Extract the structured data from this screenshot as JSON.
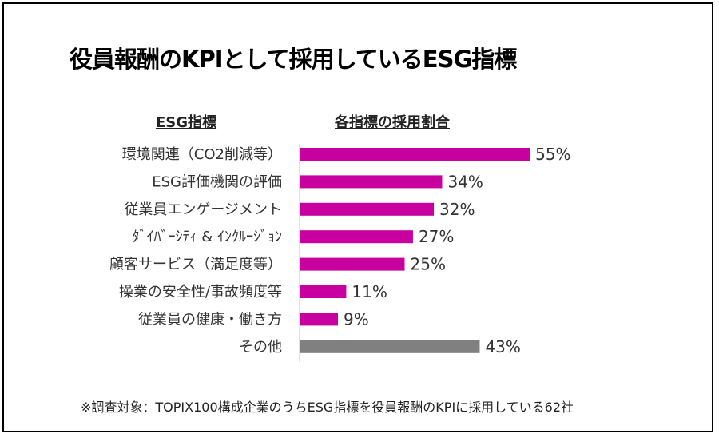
{
  "title": "役員報酬のKPIとして採用しているESG指標",
  "headers": {
    "category": "ESG指標",
    "value": "各指標の採用割合"
  },
  "note": "※調査対象：TOPIX100構成企業のうちESG指標を役員報酬のKPIに採用している62社",
  "colors": {
    "primary": "#C800A0",
    "other": "#808080"
  },
  "chart_data": {
    "type": "bar",
    "orientation": "horizontal",
    "categories": [
      "環境関連（CO2削減等）",
      "ESG評価機関の評価",
      "従業員エンゲージメント",
      "ﾀﾞｲﾊﾞｰｼﾃｨ & ｲﾝｸﾙｰｼﾞｮﾝ",
      "顧客サービス（満足度等）",
      "操業の安全性/事故頻度等",
      "従業員の健康・働き方",
      "その他"
    ],
    "values": [
      55,
      34,
      32,
      27,
      25,
      11,
      9,
      43
    ],
    "labels": [
      "55%",
      "34%",
      "32%",
      "27%",
      "25%",
      "11%",
      "9%",
      "43%"
    ],
    "unit": "%",
    "xlim": [
      0,
      60
    ],
    "grid": false
  }
}
